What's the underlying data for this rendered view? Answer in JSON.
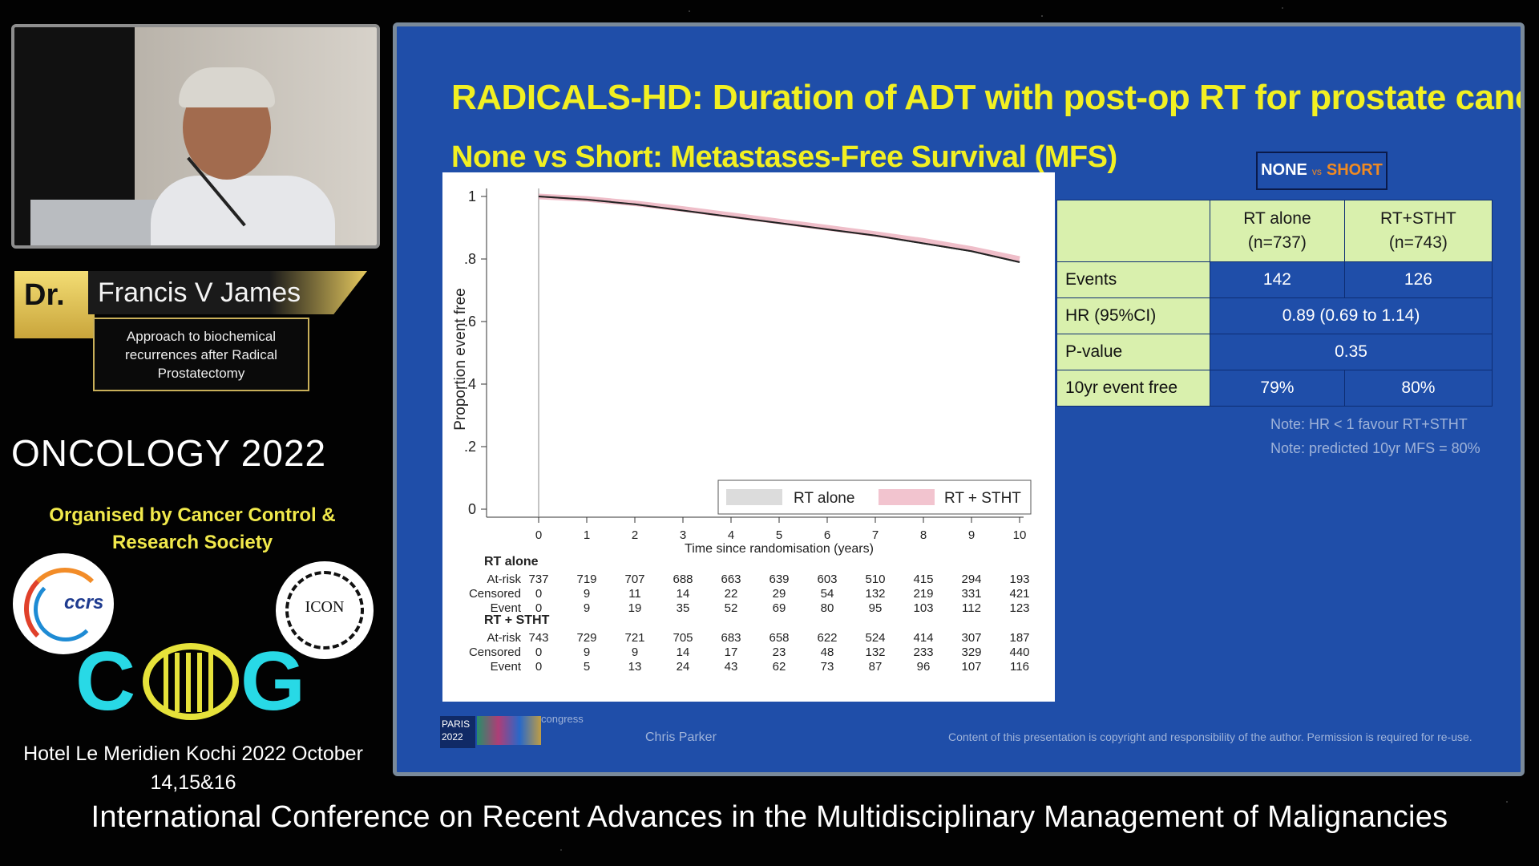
{
  "sidebar": {
    "dr_label": "Dr.",
    "speaker_name": "Francis V James",
    "topic_lines": [
      "Approach to biochemical",
      "recurrences after Radical",
      "Prostatectomy"
    ],
    "event_title": "ONCOLOGY 2022",
    "organised_line1": "Organised by   Cancer Control &",
    "organised_line2": "Research Society",
    "logo_ccrs_text": "ccrs",
    "logo_icon_text": "ICON",
    "logo_cog_left": "C",
    "logo_cog_right": "G",
    "venue_line1": "Hotel Le Meridien  Kochi  2022 October",
    "venue_line2": "14,15&16"
  },
  "banner": "International Conference on Recent Advances in the Multidisciplinary Management of Malignancies",
  "slide": {
    "title": "RADICALS-HD: Duration of ADT with post-op RT for prostate cancer",
    "subtitle": "None vs Short: Metastases-Free Survival (MFS)",
    "badge_none": "NONE",
    "badge_vs": "vs",
    "badge_short": "SHORT",
    "table": {
      "col1": "RT alone",
      "col1_n": "(n=737)",
      "col2": "RT+STHT",
      "col2_n": "(n=743)",
      "rows": [
        {
          "label": "Events",
          "a": "142",
          "b": "126"
        },
        {
          "label": "HR (95%CI)",
          "merged": "0.89 (0.69 to 1.14)"
        },
        {
          "label": "P-value",
          "merged": "0.35"
        },
        {
          "label": "10yr event free",
          "a": "79%",
          "b": "80%"
        }
      ]
    },
    "note1": "Note: HR < 1 favour RT+STHT",
    "note2": "Note: predicted 10yr MFS = 80%",
    "presenter": "Chris Parker",
    "copyright": "Content of this presentation is copyright and responsibility of the author. Permission is required for re-use.",
    "paris_label": "PARIS 2022",
    "congress_label": "congress"
  },
  "chart_data": {
    "type": "line",
    "xlabel": "Time since randomisation (years)",
    "ylabel": "Proportion event free",
    "xlim": [
      0,
      10
    ],
    "ylim": [
      0,
      1
    ],
    "x_ticks": [
      "0",
      "1",
      "2",
      "3",
      "4",
      "5",
      "6",
      "7",
      "8",
      "9",
      "10"
    ],
    "y_ticks": [
      "0",
      ".2",
      ".4",
      ".6",
      ".8",
      "1"
    ],
    "legend": [
      "RT alone",
      "RT + STHT"
    ],
    "legend_position": "bottom-right",
    "series": [
      {
        "name": "RT alone",
        "color": "#222222",
        "x": [
          0,
          1,
          2,
          3,
          4,
          5,
          6,
          7,
          8,
          9,
          10
        ],
        "y": [
          1.0,
          0.99,
          0.975,
          0.955,
          0.935,
          0.915,
          0.895,
          0.875,
          0.85,
          0.825,
          0.79
        ]
      },
      {
        "name": "RT + STHT",
        "color": "#e8a3b2",
        "x": [
          0,
          1,
          2,
          3,
          4,
          5,
          6,
          7,
          8,
          9,
          10
        ],
        "y": [
          1.0,
          0.992,
          0.978,
          0.96,
          0.94,
          0.92,
          0.9,
          0.88,
          0.858,
          0.832,
          0.8
        ]
      }
    ],
    "risk_table": {
      "groups": [
        {
          "name": "RT alone",
          "rows": [
            {
              "label": "At-risk",
              "values": [
                "737",
                "719",
                "707",
                "688",
                "663",
                "639",
                "603",
                "510",
                "415",
                "294",
                "193"
              ]
            },
            {
              "label": "Censored",
              "values": [
                "0",
                "9",
                "11",
                "14",
                "22",
                "29",
                "54",
                "132",
                "219",
                "331",
                "421"
              ]
            },
            {
              "label": "Event",
              "values": [
                "0",
                "9",
                "19",
                "35",
                "52",
                "69",
                "80",
                "95",
                "103",
                "112",
                "123"
              ]
            }
          ]
        },
        {
          "name": "RT + STHT",
          "rows": [
            {
              "label": "At-risk",
              "values": [
                "743",
                "729",
                "721",
                "705",
                "683",
                "658",
                "622",
                "524",
                "414",
                "307",
                "187"
              ]
            },
            {
              "label": "Censored",
              "values": [
                "0",
                "9",
                "9",
                "14",
                "17",
                "23",
                "48",
                "132",
                "233",
                "329",
                "440"
              ]
            },
            {
              "label": "Event",
              "values": [
                "0",
                "5",
                "13",
                "24",
                "43",
                "62",
                "73",
                "87",
                "96",
                "107",
                "116"
              ]
            }
          ]
        }
      ]
    }
  }
}
